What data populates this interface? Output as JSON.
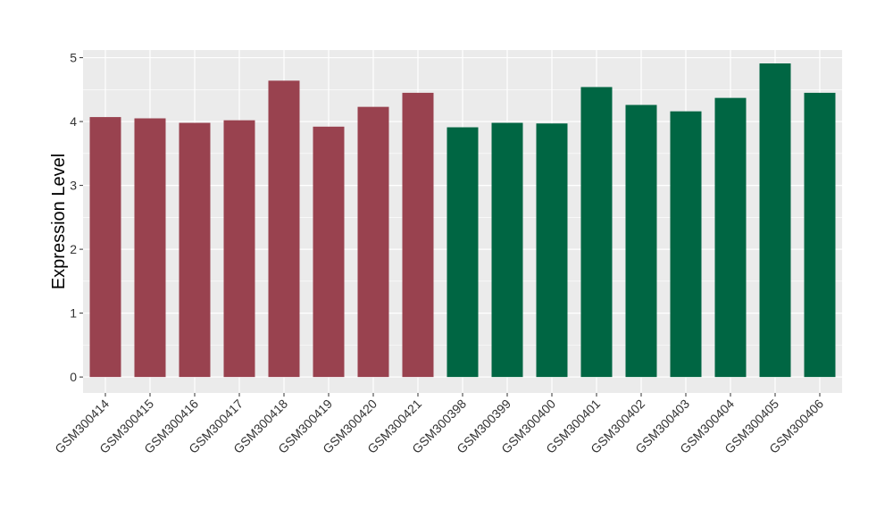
{
  "chart_data": {
    "type": "bar",
    "title": "",
    "xlabel": "",
    "ylabel": "Expression Level",
    "ylim": [
      -0.25,
      5.12
    ],
    "yticks": [
      0,
      1,
      2,
      3,
      4,
      5
    ],
    "grid": true,
    "categories": [
      "GSM300414",
      "GSM300415",
      "GSM300416",
      "GSM300417",
      "GSM300418",
      "GSM300419",
      "GSM300420",
      "GSM300421",
      "GSM300398",
      "GSM300399",
      "GSM300400",
      "GSM300401",
      "GSM300402",
      "GSM300403",
      "GSM300404",
      "GSM300405",
      "GSM300406"
    ],
    "values": [
      4.07,
      4.05,
      3.98,
      4.02,
      4.64,
      3.92,
      4.23,
      4.45,
      3.91,
      3.98,
      3.97,
      4.54,
      4.26,
      4.16,
      4.37,
      4.91,
      4.45
    ],
    "bar_colors": [
      "#99424f",
      "#99424f",
      "#99424f",
      "#99424f",
      "#99424f",
      "#99424f",
      "#99424f",
      "#99424f",
      "#006643",
      "#006643",
      "#006643",
      "#006643",
      "#006643",
      "#006643",
      "#006643",
      "#006643",
      "#006643"
    ],
    "panel_background": "#ebebeb",
    "grid_color": "#ffffff"
  }
}
